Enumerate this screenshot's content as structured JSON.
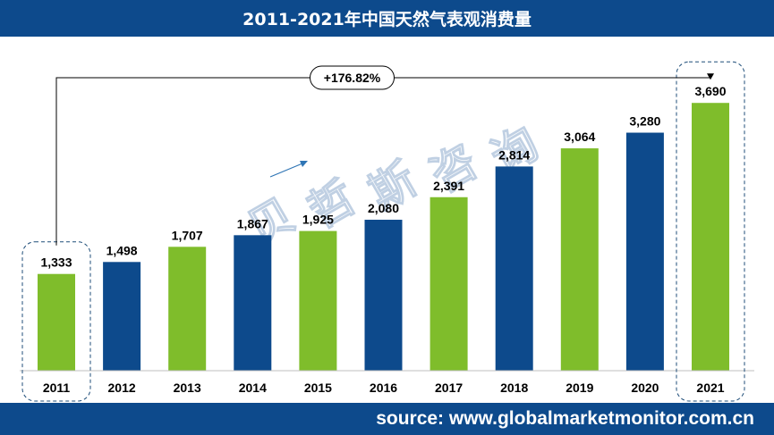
{
  "header": {
    "title": "2011-2021年中国天然气表观消费量"
  },
  "footer": {
    "source": "source: www.globalmarketmonitor.com.cn"
  },
  "watermark": "贝哲斯咨询",
  "chart_data": {
    "type": "bar",
    "title": "2011-2021年中国天然气表观消费量",
    "xlabel": "",
    "ylabel": "",
    "categories": [
      "2011",
      "2012",
      "2013",
      "2014",
      "2015",
      "2016",
      "2017",
      "2018",
      "2019",
      "2020",
      "2021"
    ],
    "values": [
      1333,
      1498,
      1707,
      1867,
      1925,
      2080,
      2391,
      2814,
      3064,
      3280,
      3690
    ],
    "value_labels": [
      "1,333",
      "1,498",
      "1,707",
      "1,867",
      "1,925",
      "2,080",
      "2,391",
      "2,814",
      "3,064",
      "3,280",
      "3,690"
    ],
    "bar_colors": [
      "#7fbd2b",
      "#0d4a8c",
      "#7fbd2b",
      "#0d4a8c",
      "#7fbd2b",
      "#0d4a8c",
      "#7fbd2b",
      "#0d4a8c",
      "#7fbd2b",
      "#0d4a8c",
      "#7fbd2b"
    ],
    "ylim": [
      0,
      3800
    ],
    "grid": false,
    "annotation": {
      "label": "+176.82%",
      "from": "2011",
      "to": "2021"
    }
  }
}
